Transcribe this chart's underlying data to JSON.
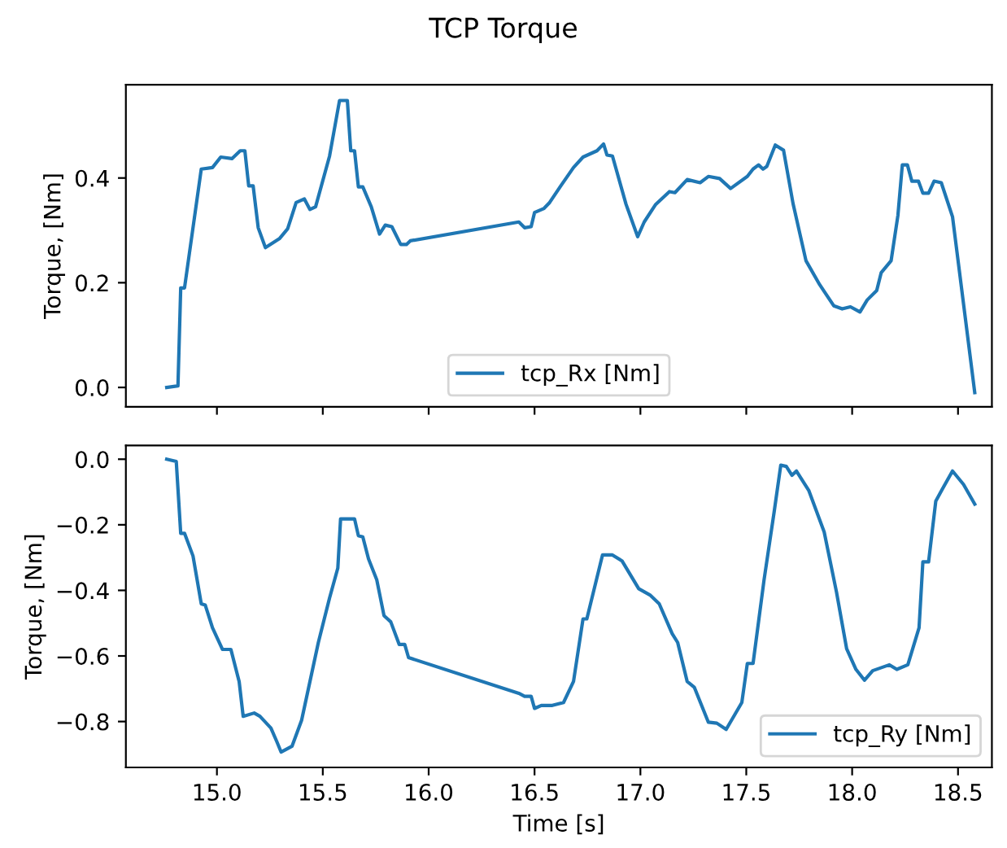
{
  "chart_data": [
    {
      "type": "line",
      "title": "TCP Torque",
      "ylabel": "Torque, [Nm]",
      "legend": "bottom",
      "grid": false,
      "tick_labels": "y",
      "xlim": [
        14.57,
        18.66
      ],
      "ylim": [
        -0.037,
        0.578
      ],
      "xticks": [
        {
          "value": 15.0,
          "label": null
        },
        {
          "value": 15.5,
          "label": null
        },
        {
          "value": 16.0,
          "label": null
        },
        {
          "value": 16.5,
          "label": null
        },
        {
          "value": 17.0,
          "label": null
        },
        {
          "value": 17.5,
          "label": null
        },
        {
          "value": 18.0,
          "label": null
        },
        {
          "value": 18.5,
          "label": null
        }
      ],
      "yticks": [
        {
          "value": 0.0,
          "label": "0.0"
        },
        {
          "value": 0.2,
          "label": "0.2"
        },
        {
          "value": 0.4,
          "label": "0.4"
        }
      ],
      "series": [
        {
          "name": "tcp_Rx [Nm]",
          "color": "#1f77b4",
          "x": [
            14.763,
            14.816,
            14.829,
            14.847,
            14.926,
            14.979,
            15.018,
            15.071,
            15.11,
            15.132,
            15.15,
            15.171,
            15.195,
            15.229,
            15.295,
            15.334,
            15.374,
            15.413,
            15.439,
            15.466,
            15.532,
            15.579,
            15.616,
            15.632,
            15.65,
            15.668,
            15.689,
            15.729,
            15.768,
            15.795,
            15.826,
            15.868,
            15.895,
            15.913,
            16.426,
            16.453,
            16.484,
            16.5,
            16.545,
            16.571,
            16.624,
            16.684,
            16.729,
            16.795,
            16.826,
            16.842,
            16.868,
            16.932,
            16.987,
            17.018,
            17.071,
            17.137,
            17.163,
            17.221,
            17.282,
            17.321,
            17.374,
            17.426,
            17.505,
            17.532,
            17.558,
            17.579,
            17.597,
            17.637,
            17.676,
            17.721,
            17.782,
            17.847,
            17.913,
            17.953,
            17.992,
            18.037,
            18.071,
            18.116,
            18.137,
            18.184,
            18.216,
            18.237,
            18.261,
            18.282,
            18.313,
            18.334,
            18.361,
            18.387,
            18.421,
            18.474,
            18.579
          ],
          "values": [
            0.0,
            0.003,
            0.19,
            0.19,
            0.417,
            0.42,
            0.44,
            0.437,
            0.452,
            0.452,
            0.385,
            0.385,
            0.305,
            0.267,
            0.284,
            0.303,
            0.353,
            0.36,
            0.34,
            0.345,
            0.442,
            0.548,
            0.548,
            0.452,
            0.452,
            0.383,
            0.383,
            0.345,
            0.293,
            0.31,
            0.307,
            0.273,
            0.273,
            0.28,
            0.316,
            0.305,
            0.307,
            0.334,
            0.342,
            0.353,
            0.385,
            0.42,
            0.44,
            0.452,
            0.465,
            0.444,
            0.442,
            0.35,
            0.288,
            0.316,
            0.349,
            0.374,
            0.372,
            0.397,
            0.391,
            0.403,
            0.399,
            0.38,
            0.403,
            0.417,
            0.425,
            0.417,
            0.422,
            0.463,
            0.453,
            0.351,
            0.242,
            0.196,
            0.156,
            0.15,
            0.154,
            0.144,
            0.167,
            0.185,
            0.219,
            0.242,
            0.328,
            0.425,
            0.425,
            0.394,
            0.394,
            0.371,
            0.371,
            0.394,
            0.391,
            0.326,
            -0.01
          ]
        }
      ]
    },
    {
      "type": "line",
      "xlabel": "Time [s]",
      "ylabel": "Torque, [Nm]",
      "legend": "bottom right",
      "grid": false,
      "xlim": [
        14.57,
        18.66
      ],
      "ylim": [
        -0.94,
        0.042
      ],
      "xticks": [
        {
          "value": 15.0,
          "label": "15.0"
        },
        {
          "value": 15.5,
          "label": "15.5"
        },
        {
          "value": 16.0,
          "label": "16.0"
        },
        {
          "value": 16.5,
          "label": "16.5"
        },
        {
          "value": 17.0,
          "label": "17.0"
        },
        {
          "value": 17.5,
          "label": "17.5"
        },
        {
          "value": 18.0,
          "label": "18.0"
        },
        {
          "value": 18.5,
          "label": "18.5"
        }
      ],
      "yticks": [
        {
          "value": 0.0,
          "label": "0.0"
        },
        {
          "value": -0.2,
          "label": "−0.2"
        },
        {
          "value": -0.4,
          "label": "−0.4"
        },
        {
          "value": -0.6,
          "label": "−0.6"
        },
        {
          "value": -0.8,
          "label": "−0.8"
        }
      ],
      "series": [
        {
          "name": "tcp_Ry [Nm]",
          "color": "#1f77b4",
          "x": [
            14.763,
            14.808,
            14.829,
            14.847,
            14.887,
            14.926,
            14.945,
            14.979,
            15.026,
            15.066,
            15.105,
            15.124,
            15.176,
            15.203,
            15.255,
            15.282,
            15.303,
            15.355,
            15.4,
            15.479,
            15.532,
            15.571,
            15.584,
            15.65,
            15.668,
            15.689,
            15.716,
            15.755,
            15.789,
            15.821,
            15.861,
            15.887,
            15.905,
            16.426,
            16.453,
            16.484,
            16.5,
            16.532,
            16.584,
            16.637,
            16.684,
            16.729,
            16.747,
            16.821,
            16.868,
            16.913,
            16.992,
            17.045,
            17.089,
            17.15,
            17.176,
            17.221,
            17.255,
            17.321,
            17.361,
            17.405,
            17.479,
            17.505,
            17.532,
            17.584,
            17.632,
            17.663,
            17.689,
            17.716,
            17.737,
            17.795,
            17.868,
            17.926,
            17.974,
            18.018,
            18.058,
            18.097,
            18.176,
            18.211,
            18.263,
            18.316,
            18.334,
            18.361,
            18.395,
            18.426,
            18.474,
            18.526,
            18.579
          ],
          "values": [
            0.0,
            -0.007,
            -0.226,
            -0.226,
            -0.295,
            -0.441,
            -0.445,
            -0.514,
            -0.58,
            -0.58,
            -0.678,
            -0.784,
            -0.774,
            -0.784,
            -0.82,
            -0.86,
            -0.893,
            -0.875,
            -0.796,
            -0.559,
            -0.423,
            -0.332,
            -0.182,
            -0.182,
            -0.233,
            -0.237,
            -0.304,
            -0.368,
            -0.477,
            -0.496,
            -0.565,
            -0.565,
            -0.605,
            -0.714,
            -0.723,
            -0.723,
            -0.76,
            -0.751,
            -0.751,
            -0.742,
            -0.678,
            -0.487,
            -0.487,
            -0.292,
            -0.292,
            -0.31,
            -0.395,
            -0.414,
            -0.441,
            -0.532,
            -0.559,
            -0.678,
            -0.696,
            -0.802,
            -0.805,
            -0.824,
            -0.742,
            -0.623,
            -0.623,
            -0.368,
            -0.159,
            -0.018,
            -0.022,
            -0.049,
            -0.036,
            -0.095,
            -0.222,
            -0.405,
            -0.578,
            -0.641,
            -0.674,
            -0.645,
            -0.627,
            -0.641,
            -0.627,
            -0.514,
            -0.313,
            -0.313,
            -0.128,
            -0.091,
            -0.036,
            -0.077,
            -0.137
          ]
        }
      ]
    }
  ]
}
